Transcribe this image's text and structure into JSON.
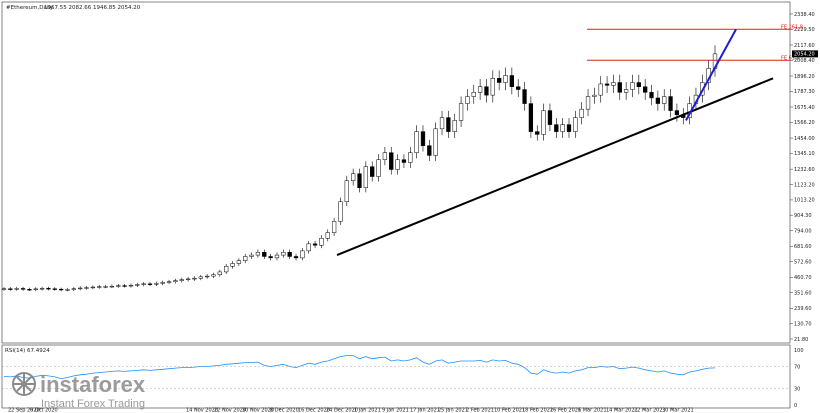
{
  "header": {
    "symbol": "#Ethereum,Daily",
    "ohlc": "1967.55 2082.66 1946.85 2054.20"
  },
  "indicator": {
    "label": "RSI(14) 67.4924"
  },
  "brand": {
    "name": "instaforex",
    "tagline": "Instant Forex Trading"
  },
  "colors": {
    "trendline": "#000000",
    "projection": "#1f1fd0",
    "fib": "#e0201a",
    "rsi": "#1e90ff",
    "candle": "#000000"
  },
  "chart_data": {
    "type": "candlestick",
    "y_ticks": [
      "2338.40",
      "2229.50",
      "2117.60",
      "2008.40",
      "1896.20",
      "1787.30",
      "1675.40",
      "1566.20",
      "1454.00",
      "1345.10",
      "1232.60",
      "1123.20",
      "1013.20",
      "904.30",
      "794.00",
      "681.60",
      "572.60",
      "460.70",
      "351.60",
      "239.60",
      "130.70",
      "21.80"
    ],
    "ylim": [
      21.8,
      2338.4
    ],
    "x_ticks": [
      "22 Sep 2020",
      "6 Oct 2020",
      "14 Nov 2020",
      "22 Nov 2020",
      "30 Nov 2020",
      "8 Dec 2020",
      "16 Dec 2020",
      "24 Dec 2020",
      "1 Jan 2021",
      "9 Jan 2021",
      "17 Jan 2021",
      "25 Jan 2021",
      "2 Feb 2021",
      "10 Feb 2021",
      "18 Feb 2021",
      "26 Feb 2021",
      "6 Mar 2021",
      "14 Mar 2021",
      "22 Mar 2021",
      "30 Mar 2021"
    ],
    "current_price": "2054.20",
    "fib_levels": [
      {
        "label": "FE 161.8",
        "value": 2229.5
      },
      {
        "label": "FE 61.8",
        "value": 2008.4
      }
    ],
    "trendline": {
      "from": [
        0,
        620
      ],
      "to": [
        88,
        1880
      ]
    },
    "projection": {
      "from": [
        70,
        1580
      ],
      "to": [
        80,
        2229
      ]
    },
    "close": [
      380,
      378,
      382,
      376,
      374,
      379,
      383,
      380,
      377,
      372,
      375,
      380,
      385,
      388,
      392,
      395,
      396,
      398,
      402,
      400,
      405,
      410,
      415,
      412,
      418,
      425,
      430,
      438,
      445,
      450,
      455,
      465,
      470,
      480,
      500,
      540,
      560,
      580,
      610,
      620,
      640,
      610,
      600,
      620,
      640,
      610,
      600,
      650,
      700,
      690,
      740,
      780,
      860,
      1000,
      1150,
      1200,
      1100,
      1250,
      1180,
      1300,
      1350,
      1230,
      1300,
      1280,
      1350,
      1500,
      1400,
      1330,
      1520,
      1600,
      1500,
      1580,
      1700,
      1750,
      1780,
      1820,
      1760,
      1880,
      1850,
      1900,
      1820,
      1800,
      1700,
      1500,
      1480,
      1650,
      1550,
      1500,
      1550,
      1500,
      1600,
      1660,
      1750,
      1760,
      1840,
      1830,
      1850,
      1780,
      1800,
      1850,
      1820,
      1780,
      1740,
      1700,
      1750,
      1650,
      1620,
      1600,
      1700,
      1760,
      1850,
      1950,
      2054.2
    ],
    "rsi": {
      "ylim": [
        0,
        100
      ],
      "ticks": [
        "100",
        "70",
        "30",
        "0"
      ],
      "values": [
        52,
        51,
        53,
        50,
        49,
        52,
        54,
        53,
        51,
        48,
        50,
        53,
        55,
        56,
        58,
        59,
        60,
        61,
        62,
        61,
        62,
        63,
        64,
        63,
        64,
        65,
        66,
        67,
        68,
        68,
        69,
        70,
        70,
        71,
        72,
        74,
        75,
        76,
        77,
        77,
        78,
        72,
        70,
        72,
        74,
        70,
        68,
        72,
        76,
        74,
        78,
        80,
        84,
        88,
        90,
        90,
        84,
        88,
        84,
        86,
        87,
        80,
        82,
        80,
        82,
        86,
        78,
        74,
        80,
        82,
        76,
        78,
        80,
        80,
        80,
        81,
        78,
        82,
        80,
        81,
        76,
        74,
        68,
        58,
        56,
        64,
        60,
        58,
        60,
        58,
        62,
        64,
        68,
        68,
        70,
        69,
        70,
        66,
        67,
        69,
        67,
        64,
        62,
        60,
        62,
        58,
        56,
        55,
        60,
        62,
        65,
        67,
        67.5
      ]
    }
  }
}
